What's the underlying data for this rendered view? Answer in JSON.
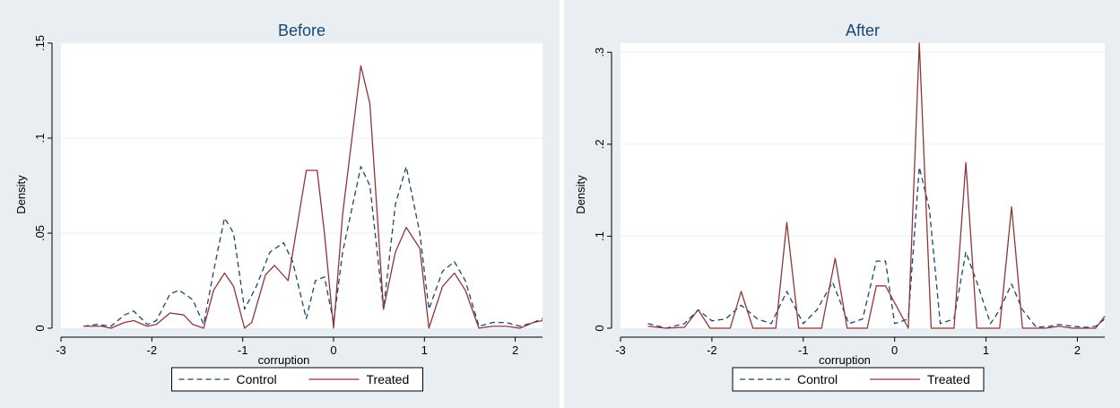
{
  "colors": {
    "panel_bg": "#e9eef3",
    "plot_bg": "#ffffff",
    "control": "#1a476f",
    "treated": "#90353b",
    "grid": "#eaf2f3",
    "axis": "#000000"
  },
  "chart_data": [
    {
      "type": "line",
      "title": "Before",
      "xlabel": "corruption",
      "ylabel": "Density",
      "xlim": [
        -3,
        2.3
      ],
      "ylim": [
        0,
        0.15
      ],
      "xticks": [
        -3,
        -2,
        -1,
        0,
        1,
        2
      ],
      "xtick_labels": [
        "-3",
        "-2",
        "-1",
        "0",
        "1",
        "2"
      ],
      "yticks": [
        0,
        0.05,
        0.1,
        0.15
      ],
      "ytick_labels": [
        "0",
        ".05",
        ".1",
        ".15"
      ],
      "grid": true,
      "legend": {
        "position": "bottom",
        "entries": [
          "Control",
          "Treated"
        ]
      },
      "series": [
        {
          "name": "Control",
          "style": "dashed",
          "x": [
            -2.75,
            -2.6,
            -2.45,
            -2.3,
            -2.2,
            -2.05,
            -1.95,
            -1.8,
            -1.7,
            -1.55,
            -1.43,
            -1.32,
            -1.2,
            -1.1,
            -0.98,
            -0.85,
            -0.7,
            -0.55,
            -0.45,
            -0.3,
            -0.2,
            -0.1,
            0.0,
            0.1,
            0.3,
            0.4,
            0.55,
            0.68,
            0.8,
            0.95,
            1.05,
            1.2,
            1.33,
            1.45,
            1.6,
            1.75,
            1.9,
            2.05,
            2.2,
            2.3
          ],
          "y": [
            0.001,
            0.002,
            0.001,
            0.007,
            0.009,
            0.002,
            0.004,
            0.018,
            0.02,
            0.015,
            0.002,
            0.03,
            0.058,
            0.05,
            0.01,
            0.022,
            0.04,
            0.045,
            0.035,
            0.005,
            0.025,
            0.027,
            0.003,
            0.04,
            0.085,
            0.075,
            0.01,
            0.065,
            0.085,
            0.05,
            0.01,
            0.03,
            0.035,
            0.025,
            0.001,
            0.003,
            0.003,
            0.001,
            0.003,
            0.005
          ]
        },
        {
          "name": "Treated",
          "style": "solid",
          "x": [
            -2.75,
            -2.55,
            -2.45,
            -2.3,
            -2.2,
            -2.05,
            -1.95,
            -1.8,
            -1.65,
            -1.55,
            -1.43,
            -1.32,
            -1.2,
            -1.1,
            -0.98,
            -0.9,
            -0.75,
            -0.65,
            -0.5,
            -0.3,
            -0.18,
            -0.1,
            0.0,
            0.1,
            0.3,
            0.4,
            0.55,
            0.68,
            0.8,
            0.95,
            1.05,
            1.2,
            1.33,
            1.45,
            1.6,
            1.75,
            1.9,
            2.05,
            2.2,
            2.3
          ],
          "y": [
            0.001,
            0.001,
            0.0,
            0.003,
            0.004,
            0.001,
            0.002,
            0.008,
            0.007,
            0.002,
            0.0,
            0.02,
            0.029,
            0.022,
            0.0,
            0.003,
            0.028,
            0.033,
            0.025,
            0.083,
            0.083,
            0.05,
            0.0,
            0.06,
            0.138,
            0.118,
            0.01,
            0.04,
            0.053,
            0.042,
            0.0,
            0.022,
            0.029,
            0.02,
            0.0,
            0.001,
            0.001,
            0.0,
            0.003,
            0.004
          ]
        }
      ]
    },
    {
      "type": "line",
      "title": "After",
      "xlabel": "corruption",
      "ylabel": "Density",
      "xlim": [
        -3,
        2.3
      ],
      "ylim": [
        0,
        0.31
      ],
      "xticks": [
        -3,
        -2,
        -1,
        0,
        1,
        2
      ],
      "xtick_labels": [
        "-3",
        "-2",
        "-1",
        "0",
        "1",
        "2"
      ],
      "yticks": [
        0,
        0.1,
        0.2,
        0.3
      ],
      "ytick_labels": [
        "0",
        ".1",
        ".2",
        ".3"
      ],
      "grid": true,
      "legend": {
        "position": "bottom",
        "entries": [
          "Control",
          "Treated"
        ]
      },
      "series": [
        {
          "name": "Control",
          "style": "dashed",
          "x": [
            -2.7,
            -2.5,
            -2.3,
            -2.15,
            -2.0,
            -1.85,
            -1.68,
            -1.5,
            -1.35,
            -1.18,
            -1.0,
            -0.85,
            -0.68,
            -0.5,
            -0.35,
            -0.2,
            -0.1,
            0.0,
            0.15,
            0.27,
            0.38,
            0.5,
            0.65,
            0.78,
            0.9,
            1.05,
            1.15,
            1.28,
            1.4,
            1.55,
            1.7,
            1.8,
            1.95,
            2.1,
            2.2,
            2.3
          ],
          "y": [
            0.005,
            0.0,
            0.005,
            0.02,
            0.008,
            0.01,
            0.025,
            0.01,
            0.005,
            0.04,
            0.005,
            0.02,
            0.05,
            0.005,
            0.01,
            0.073,
            0.073,
            0.005,
            0.01,
            0.175,
            0.13,
            0.005,
            0.01,
            0.083,
            0.05,
            0.005,
            0.02,
            0.048,
            0.02,
            0.001,
            0.002,
            0.004,
            0.002,
            0.001,
            0.002,
            0.01
          ]
        },
        {
          "name": "Treated",
          "style": "solid",
          "x": [
            -2.7,
            -2.5,
            -2.3,
            -2.15,
            -2.02,
            -1.8,
            -1.68,
            -1.55,
            -1.3,
            -1.18,
            -1.05,
            -0.8,
            -0.65,
            -0.52,
            -0.3,
            -0.2,
            -0.1,
            0.15,
            0.27,
            0.4,
            0.65,
            0.78,
            0.9,
            1.15,
            1.28,
            1.4,
            1.65,
            1.8,
            1.95,
            2.2,
            2.3
          ],
          "y": [
            0.002,
            0.0,
            0.001,
            0.02,
            0.0,
            0.0,
            0.04,
            0.0,
            0.0,
            0.115,
            0.0,
            0.0,
            0.076,
            0.0,
            0.0,
            0.046,
            0.046,
            0.0,
            0.31,
            0.0,
            0.0,
            0.18,
            0.0,
            0.0,
            0.132,
            0.0,
            0.0,
            0.002,
            0.0,
            0.0,
            0.013
          ]
        }
      ]
    }
  ]
}
